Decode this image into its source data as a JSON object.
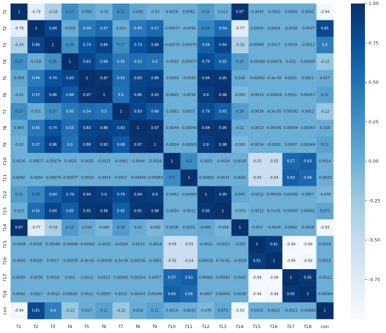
{
  "chart_data": {
    "type": "heatmap",
    "x_categories": [
      "f1",
      "f2",
      "f3",
      "f4",
      "f5",
      "f6",
      "f7",
      "f8",
      "f9",
      "f10",
      "f11",
      "f12",
      "f13",
      "f14",
      "f15",
      "f16",
      "f17",
      "f18",
      "con"
    ],
    "y_categories": [
      "f1",
      "f2",
      "f3",
      "f4",
      "f5",
      "f6",
      "f7",
      "f8",
      "f9",
      "f10",
      "f11",
      "f12",
      "f13",
      "f14",
      "f15",
      "f16",
      "f17",
      "f18",
      "con"
    ],
    "colormap": "Blues",
    "clim": [
      -1,
      1
    ],
    "cticks": [
      {
        "value": -0.75,
        "label": "-0.75"
      },
      {
        "value": -0.5,
        "label": "-0.50"
      },
      {
        "value": -0.25,
        "label": "-0.25"
      },
      {
        "value": 0,
        "label": "0.00"
      },
      {
        "value": 0.25,
        "label": "0.25"
      },
      {
        "value": 0.5,
        "label": "0.50"
      },
      {
        "value": 0.75,
        "label": "0.75"
      },
      {
        "value": 1,
        "label": "1.00"
      }
    ],
    "values": [
      [
        1,
        -0.79,
        -0.34,
        0.27,
        0.063,
        -0.02,
        0.27,
        0.063,
        -0.02,
        0.0016,
        0.0062,
        0.15,
        0.013,
        0.97,
        -0.0045,
        -0.0041,
        0.0059,
        0.0042,
        -0.94
      ],
      [
        -0.79,
        1,
        0.84,
        0.018,
        0.44,
        0.57,
        0.021,
        0.45,
        0.57,
        -0.00077,
        -0.0054,
        0.33,
        0.54,
        -0.77,
        0.0029,
        0.0029,
        -0.0036,
        -0.0027,
        0.81
      ],
      [
        -0.34,
        0.84,
        1,
        0.26,
        0.74,
        0.86,
        0.27,
        0.74,
        0.86,
        -0.00079,
        -0.00079,
        0.64,
        0.84,
        -0.33,
        0.00085,
        0.0017,
        0.0019,
        -0.0012,
        0.4
      ],
      [
        0.27,
        0.018,
        0.26,
        1,
        0.83,
        0.68,
        0.45,
        0.53,
        0.5,
        -0.0035,
        -0.00077,
        0.79,
        0.65,
        0.16,
        -0.00099,
        -0.00078,
        0.002,
        0.00026,
        -0.22
      ],
      [
        0.063,
        0.44,
        0.74,
        0.83,
        1,
        0.97,
        0.54,
        0.83,
        0.86,
        -0.0033,
        -0.0033,
        0.94,
        0.95,
        0.016,
        -0.00092,
        -6.3e-05,
        0.0011,
        0.0011,
        0.017
      ],
      [
        -0.02,
        0.57,
        0.86,
        0.68,
        0.97,
        1,
        0.5,
        0.86,
        0.93,
        -0.0025,
        -0.0014,
        0.9,
        0.98,
        -0.082,
        -0.0013,
        -0.00026,
        0.0011,
        0.00057,
        0.11
      ],
      [
        0.27,
        0.021,
        0.27,
        0.45,
        0.54,
        0.5,
        1,
        0.83,
        0.68,
        -0.0062,
        0.0017,
        0.79,
        0.65,
        0.16,
        -0.0024,
        -6.5e-05,
        0.00092,
        0.0012,
        -0.22
      ],
      [
        0.063,
        0.45,
        0.74,
        0.53,
        0.83,
        0.86,
        0.83,
        1,
        0.97,
        -0.0044,
        -0.00043,
        0.94,
        0.95,
        0.02,
        -0.0013,
        0.00036,
        0.00054,
        0.00043,
        0.018
      ],
      [
        -0.02,
        0.57,
        0.86,
        0.5,
        0.86,
        0.93,
        0.68,
        0.97,
        1,
        -0.0034,
        -0.00063,
        0.9,
        0.98,
        -0.082,
        -0.0014,
        -0.0001,
        0.0007,
        0.00049,
        0.11
      ],
      [
        0.0016,
        -0.00077,
        -0.00079,
        -0.0035,
        -0.0033,
        -0.0025,
        -0.0062,
        -0.0044,
        -0.0034,
        1,
        0.3,
        -0.0051,
        -0.0034,
        0.0028,
        -0.55,
        -0.55,
        0.57,
        0.63,
        0.0014
      ],
      [
        0.0062,
        -0.0054,
        -0.00079,
        -0.00077,
        -0.0033,
        -0.0014,
        0.0017,
        -0.00043,
        -0.00063,
        0.3,
        1,
        -0.00063,
        -0.0011,
        0.0001,
        -0.55,
        -0.54,
        0.63,
        0.56,
        -0.0033
      ],
      [
        0.15,
        0.33,
        0.64,
        0.79,
        0.94,
        0.9,
        0.79,
        0.94,
        0.9,
        -0.0051,
        -0.00063,
        1,
        0.95,
        0.045,
        -0.0012,
        0.00029,
        0.00083,
        0.0007,
        -0.078
      ],
      [
        0.013,
        0.54,
        0.84,
        0.65,
        0.95,
        0.98,
        0.65,
        0.95,
        0.98,
        -0.0034,
        -0.0011,
        0.95,
        1,
        -0.059,
        -0.0013,
        6.7e-05,
        0.00067,
        0.00042,
        0.073
      ],
      [
        0.97,
        -0.77,
        -0.33,
        0.16,
        0.016,
        -0.082,
        0.16,
        0.02,
        -0.082,
        0.0028,
        0.0001,
        0.045,
        -0.059,
        1,
        -0.003,
        -0.0028,
        0.0042,
        0.0028,
        -0.93
      ],
      [
        -0.0045,
        0.0029,
        0.00085,
        -0.00099,
        -0.00092,
        -0.0013,
        -0.0024,
        -0.0013,
        -0.0014,
        -0.55,
        -0.55,
        -0.0012,
        -0.0013,
        -0.003,
        1,
        0.91,
        -0.94,
        -0.99,
        0.0016
      ],
      [
        -0.0041,
        0.0029,
        0.0017,
        -0.00078,
        -6.3e-05,
        -0.00026,
        -6.5e-05,
        0.00036,
        -0.0001,
        -0.55,
        -0.54,
        0.00029,
        6.7e-05,
        -0.0028,
        0.91,
        1,
        -0.99,
        -0.94,
        0.0015
      ],
      [
        0.0059,
        -0.0036,
        0.0019,
        0.002,
        0.0011,
        0.0011,
        0.00092,
        0.00054,
        0.0007,
        0.57,
        0.63,
        0.00083,
        0.00067,
        0.0042,
        -0.94,
        -0.99,
        1,
        0.95,
        -0.0021
      ],
      [
        0.0042,
        -0.0027,
        -0.0012,
        0.00026,
        0.0011,
        0.00057,
        0.0012,
        0.00043,
        0.00049,
        0.63,
        0.56,
        0.0007,
        0.00042,
        0.0028,
        -0.99,
        -0.94,
        0.95,
        1,
        -0.00064
      ],
      [
        -0.94,
        0.81,
        0.4,
        -0.22,
        0.017,
        0.11,
        -0.22,
        0.018,
        0.11,
        0.0014,
        -0.0033,
        -0.078,
        0.073,
        -0.93,
        0.0016,
        0.0015,
        -0.0021,
        -0.00064,
        1
      ]
    ]
  }
}
